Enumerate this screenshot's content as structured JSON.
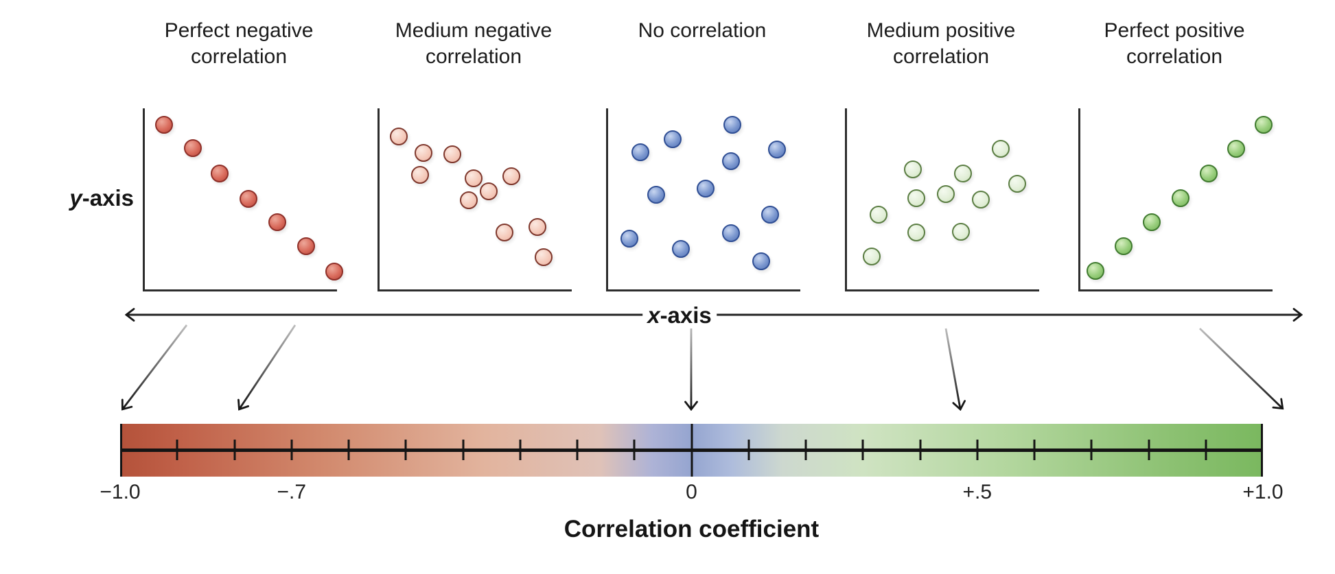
{
  "y_axis": {
    "var": "y",
    "rest": "-axis"
  },
  "x_axis": {
    "var": "x",
    "rest": "-axis"
  },
  "caption": "Correlation coefficient",
  "panels": [
    {
      "name": "perfect-negative",
      "title_line1": "Perfect negative",
      "title_line2": "correlation",
      "dot_style": "red",
      "dots": [
        [
          0.1,
          0.09
        ],
        [
          0.25,
          0.22
        ],
        [
          0.39,
          0.36
        ],
        [
          0.54,
          0.5
        ],
        [
          0.69,
          0.63
        ],
        [
          0.84,
          0.76
        ],
        [
          0.985,
          0.9
        ]
      ]
    },
    {
      "name": "medium-negative",
      "title_line1": "Medium negative",
      "title_line2": "correlation",
      "dot_style": "pink",
      "dots": [
        [
          0.1,
          0.155
        ],
        [
          0.23,
          0.246
        ],
        [
          0.38,
          0.254
        ],
        [
          0.21,
          0.367
        ],
        [
          0.49,
          0.386
        ],
        [
          0.686,
          0.375
        ],
        [
          0.567,
          0.458
        ],
        [
          0.466,
          0.508
        ],
        [
          0.65,
          0.686
        ],
        [
          0.82,
          0.655
        ],
        [
          0.852,
          0.822
        ]
      ]
    },
    {
      "name": "no-correlation",
      "title_line1": "No correlation",
      "title_line2": "",
      "dot_style": "blue",
      "dots": [
        [
          0.645,
          0.09
        ],
        [
          0.337,
          0.17
        ],
        [
          0.167,
          0.242
        ],
        [
          0.877,
          0.227
        ],
        [
          0.638,
          0.292
        ],
        [
          0.507,
          0.443
        ],
        [
          0.25,
          0.477
        ],
        [
          0.844,
          0.587
        ],
        [
          0.641,
          0.689
        ],
        [
          0.109,
          0.72
        ],
        [
          0.377,
          0.777
        ],
        [
          0.797,
          0.845
        ]
      ]
    },
    {
      "name": "medium-positive",
      "title_line1": "Medium positive",
      "title_line2": "correlation",
      "dot_style": "lightgreen",
      "dots": [
        [
          0.8,
          0.223
        ],
        [
          0.343,
          0.337
        ],
        [
          0.603,
          0.36
        ],
        [
          0.884,
          0.417
        ],
        [
          0.513,
          0.473
        ],
        [
          0.361,
          0.496
        ],
        [
          0.697,
          0.504
        ],
        [
          0.166,
          0.587
        ],
        [
          0.361,
          0.686
        ],
        [
          0.592,
          0.682
        ],
        [
          0.13,
          0.818
        ]
      ]
    },
    {
      "name": "perfect-positive",
      "title_line1": "Perfect positive",
      "title_line2": "correlation",
      "dot_style": "green",
      "dots": [
        [
          0.079,
          0.898
        ],
        [
          0.226,
          0.761
        ],
        [
          0.373,
          0.629
        ],
        [
          0.52,
          0.496
        ],
        [
          0.667,
          0.36
        ],
        [
          0.81,
          0.223
        ],
        [
          0.953,
          0.09
        ]
      ]
    }
  ],
  "dot_colors": {
    "red": {
      "light": "#eda89a",
      "base": "#d96b5c",
      "dark": "#b6453a",
      "border": "#8e2f28"
    },
    "pink": {
      "light": "#fbe9e1",
      "base": "#f5cbbc",
      "dark": "#eeb3a2",
      "border": "#7e372c"
    },
    "blue": {
      "light": "#c8d6f0",
      "base": "#7b97cf",
      "dark": "#5272b4",
      "border": "#2f4e94"
    },
    "lightgreen": {
      "light": "#f4faef",
      "base": "#e3efd9",
      "dark": "#cfe5bf",
      "border": "#5a7d42"
    },
    "green": {
      "light": "#d6eec0",
      "base": "#97cd7b",
      "dark": "#74b356",
      "border": "#3f7a2e"
    }
  },
  "scale": {
    "labels": [
      {
        "text": "−1.0",
        "pos": 0.0
      },
      {
        "text": "−.7",
        "pos": 0.15
      },
      {
        "text": "0",
        "pos": 0.5
      },
      {
        "text": "+.5",
        "pos": 0.75
      },
      {
        "text": "+1.0",
        "pos": 1.0
      }
    ],
    "minor_tick_step": 0.05,
    "major_positions": [
      0.0,
      0.5,
      1.0
    ],
    "gradient_stops": [
      {
        "pos": 0.0,
        "color": "#b4523a"
      },
      {
        "pos": 0.05,
        "color": "#c06048"
      },
      {
        "pos": 0.18,
        "color": "#d28a6e"
      },
      {
        "pos": 0.32,
        "color": "#e2b49e"
      },
      {
        "pos": 0.42,
        "color": "#dfc2b8"
      },
      {
        "pos": 0.465,
        "color": "#aeb3d6"
      },
      {
        "pos": 0.5,
        "color": "#95a5d0"
      },
      {
        "pos": 0.535,
        "color": "#aebcdc"
      },
      {
        "pos": 0.58,
        "color": "#cdd8cf"
      },
      {
        "pos": 0.65,
        "color": "#cfe3c2"
      },
      {
        "pos": 0.78,
        "color": "#b2d69d"
      },
      {
        "pos": 0.92,
        "color": "#8cc172"
      },
      {
        "pos": 1.0,
        "color": "#7ab85f"
      }
    ]
  }
}
